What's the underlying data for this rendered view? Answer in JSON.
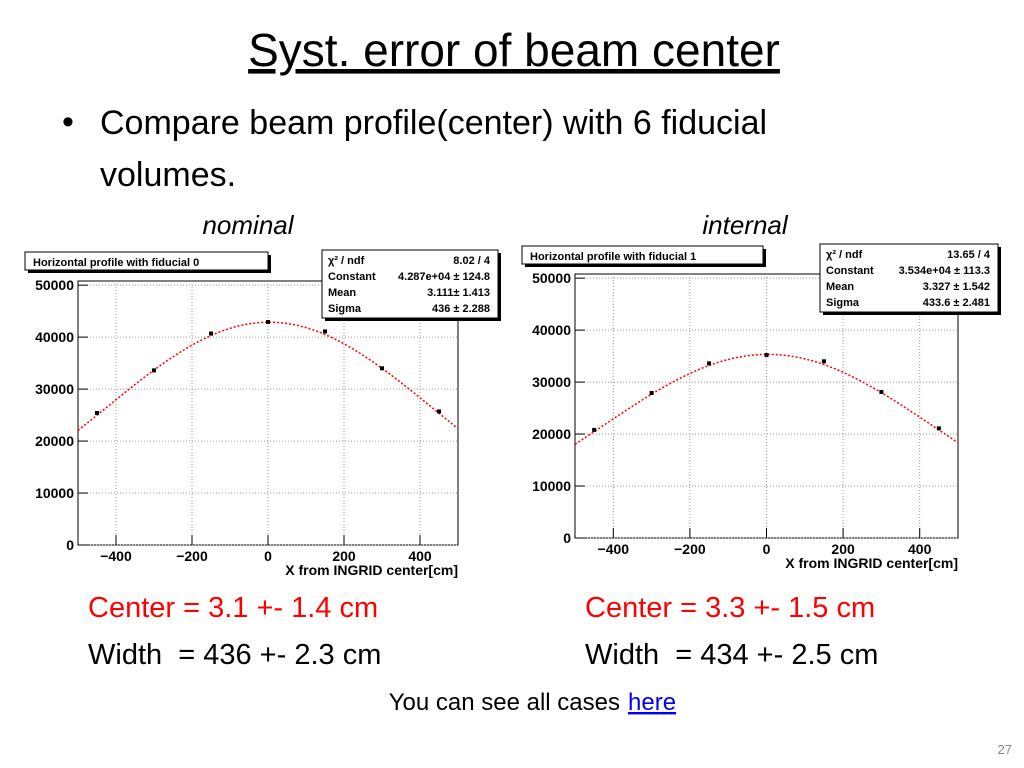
{
  "title": "Syst. error of beam center",
  "bullet": [
    "Compare beam profile(center) with 6 fiducial",
    "volumes."
  ],
  "results": [
    {
      "center": "Center = 3.1 +- 1.4 cm",
      "width": "Width  = 436 +- 2.3 cm"
    },
    {
      "center": "Center = 3.3 +- 1.5 cm",
      "width": "Width  = 434 +- 2.5 cm"
    }
  ],
  "footer": {
    "text": "You can see all cases",
    "link": "here"
  },
  "page_number": "27",
  "chart_data": [
    {
      "type": "scatter",
      "subtitle": "nominal",
      "title": "Horizontal profile with fiducial 0",
      "x_label": "X from INGRID center[cm]",
      "x": [
        -450,
        -300,
        -150,
        0,
        150,
        300,
        450
      ],
      "series": [
        {
          "color": "#000000",
          "values": [
            25400,
            33600,
            40700,
            42900,
            41100,
            34000,
            25700
          ]
        }
      ],
      "fit_color": "#ff0000",
      "stats": [
        {
          "name": "χ² / ndf",
          "label": "8.02 / 4"
        },
        {
          "name": "Constant",
          "value": 42870,
          "label": "4.287e+04 ± 124.8"
        },
        {
          "name": "Mean",
          "value": 3.111,
          "label": "3.111± 1.413"
        },
        {
          "name": "Sigma",
          "value": 436,
          "label": "436 ± 2.288"
        }
      ],
      "xlim": [
        -500,
        500
      ],
      "ylim": [
        0,
        50800
      ],
      "xticks": [
        {
          "value": -400,
          "label": "−400"
        },
        {
          "value": -200,
          "label": "−200"
        },
        0,
        200,
        400
      ],
      "yticks": [
        0,
        10000,
        20000,
        30000,
        40000,
        50000
      ],
      "grid": true
    },
    {
      "type": "scatter",
      "subtitle": "internal",
      "title": "Horizontal profile with fiducial 1",
      "x_label": "X from INGRID center[cm]",
      "x": [
        -450,
        -300,
        -150,
        0,
        150,
        300,
        450
      ],
      "series": [
        {
          "color": "#000000",
          "values": [
            20800,
            27900,
            33600,
            35200,
            34000,
            28100,
            21100
          ]
        }
      ],
      "fit_color": "#ff0000",
      "stats": [
        {
          "name": "χ² / ndf",
          "label": "13.65 / 4"
        },
        {
          "name": "Constant",
          "value": 35340,
          "label": "3.534e+04 ± 113.3"
        },
        {
          "name": "Mean",
          "value": 3.327,
          "label": "3.327 ± 1.542"
        },
        {
          "name": "Sigma",
          "value": 433.6,
          "label": "433.6 ± 2.481"
        }
      ],
      "xlim": [
        -500,
        500
      ],
      "ylim": [
        0,
        50800
      ],
      "xticks": [
        {
          "value": -400,
          "label": "−400"
        },
        {
          "value": -200,
          "label": "−200"
        },
        0,
        200,
        400
      ],
      "yticks": [
        0,
        10000,
        20000,
        30000,
        40000,
        50000
      ],
      "grid": true
    }
  ]
}
